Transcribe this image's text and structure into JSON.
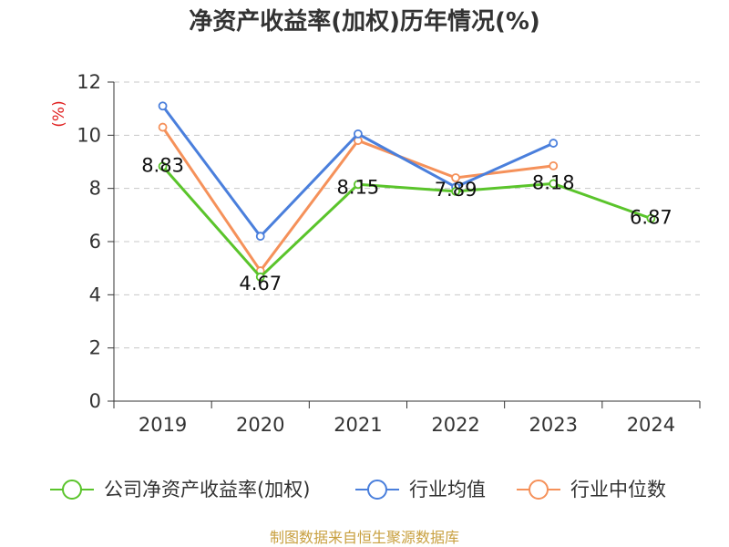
{
  "chart_data": {
    "type": "line",
    "title": "净资产收益率(加权)历年情况(%)",
    "ylabel": "(%)",
    "categories": [
      "2019",
      "2020",
      "2021",
      "2022",
      "2023",
      "2024"
    ],
    "ylim": [
      0,
      12
    ],
    "yticks": [
      0,
      2,
      4,
      6,
      8,
      10,
      12
    ],
    "grid": true,
    "legend_position": "bottom",
    "series": [
      {
        "name": "公司净资产收益率(加权)",
        "color": "#5ac42b",
        "values": [
          8.83,
          4.67,
          8.15,
          7.89,
          8.18,
          6.87
        ],
        "labels": [
          "8.83",
          "4.67",
          "8.15",
          "7.89",
          "8.18",
          "6.87"
        ]
      },
      {
        "name": "行业均值",
        "color": "#4a7fdc",
        "values": [
          11.1,
          6.2,
          10.05,
          8.05,
          9.7,
          null
        ]
      },
      {
        "name": "行业中位数",
        "color": "#f5915a",
        "values": [
          10.3,
          4.9,
          9.8,
          8.4,
          8.85,
          null
        ]
      }
    ]
  },
  "source": "制图数据来自恒生聚源数据库"
}
